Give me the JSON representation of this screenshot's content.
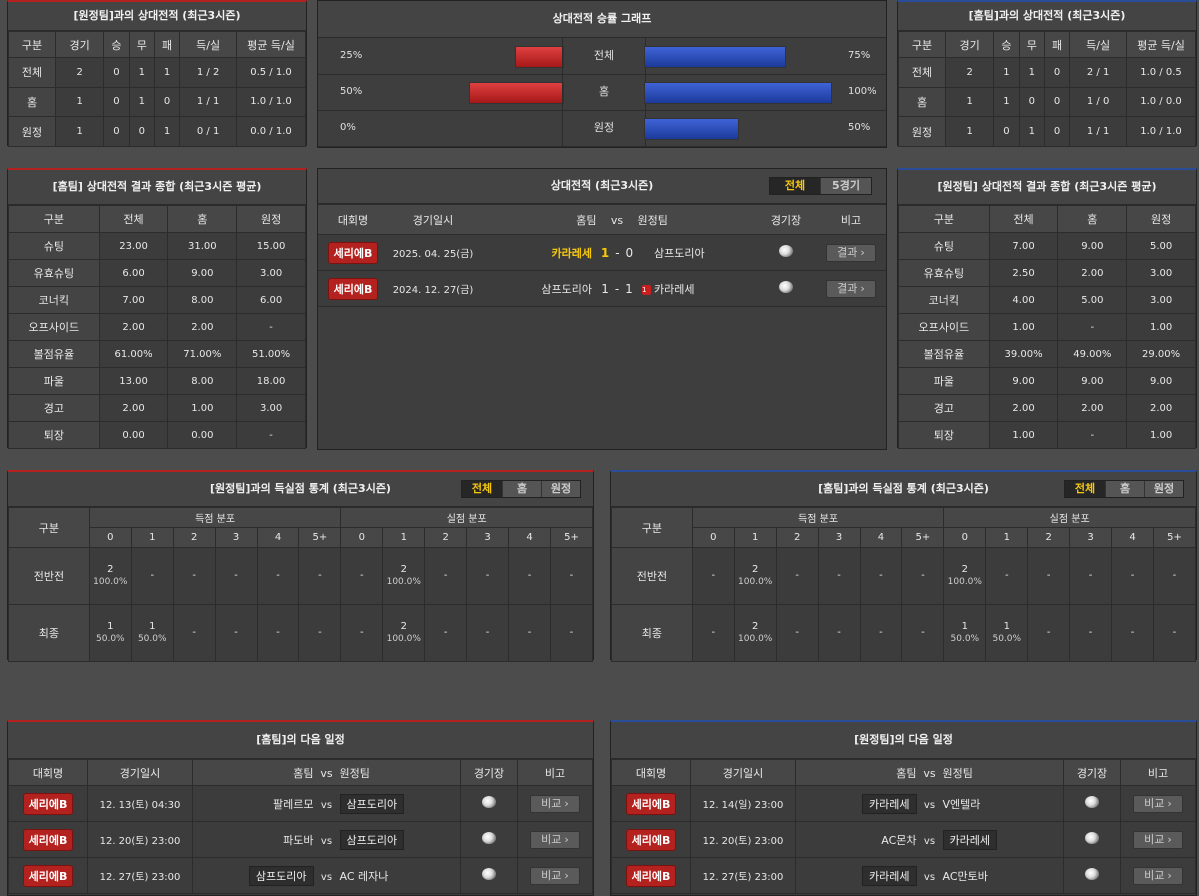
{
  "h2h_away_table": {
    "title": "[원정팀]과의 상대전적 (최근3시즌)",
    "headers": [
      "구분",
      "경기",
      "승",
      "무",
      "패",
      "득/실",
      "평균 득/실"
    ],
    "rows": [
      [
        "전체",
        "2",
        "0",
        "1",
        "1",
        "1 / 2",
        "0.5 / 1.0"
      ],
      [
        "홈",
        "1",
        "0",
        "1",
        "0",
        "1 / 1",
        "1.0 / 1.0"
      ],
      [
        "원정",
        "1",
        "0",
        "0",
        "1",
        "0 / 1",
        "0.0 / 1.0"
      ]
    ]
  },
  "h2h_home_table": {
    "title": "[홈팀]과의 상대전적 (최근3시즌)",
    "headers": [
      "구분",
      "경기",
      "승",
      "무",
      "패",
      "득/실",
      "평균 득/실"
    ],
    "rows": [
      [
        "전체",
        "2",
        "1",
        "1",
        "0",
        "2 / 1",
        "1.0 / 0.5"
      ],
      [
        "홈",
        "1",
        "1",
        "0",
        "0",
        "1 / 0",
        "1.0 / 0.0"
      ],
      [
        "원정",
        "1",
        "0",
        "1",
        "0",
        "1 / 1",
        "1.0 / 1.0"
      ]
    ]
  },
  "win_rate_graph": {
    "title": "상대전적 승률 그래프",
    "rows": [
      {
        "label": "전체",
        "left_text": "25%",
        "right_text": "75%",
        "left": 0.25,
        "right": 0.75
      },
      {
        "label": "홈",
        "left_text": "50%",
        "right_text": "100%",
        "left": 0.5,
        "right": 1.0
      },
      {
        "label": "원정",
        "left_text": "0%",
        "right_text": "50%",
        "left": 0.0,
        "right": 0.5
      }
    ]
  },
  "home_summary": {
    "title": "[홈팀] 상대전적 결과 종합 (최근3시즌 평균)",
    "headers": [
      "구분",
      "전체",
      "홈",
      "원정"
    ],
    "rows": [
      [
        "슈팅",
        "23.00",
        "31.00",
        "15.00"
      ],
      [
        "유효슈팅",
        "6.00",
        "9.00",
        "3.00"
      ],
      [
        "코너킥",
        "7.00",
        "8.00",
        "6.00"
      ],
      [
        "오프사이드",
        "2.00",
        "2.00",
        "-"
      ],
      [
        "볼점유율",
        "61.00%",
        "71.00%",
        "51.00%"
      ],
      [
        "파울",
        "13.00",
        "8.00",
        "18.00"
      ],
      [
        "경고",
        "2.00",
        "1.00",
        "3.00"
      ],
      [
        "퇴장",
        "0.00",
        "0.00",
        "-"
      ]
    ]
  },
  "away_summary": {
    "title": "[원정팀] 상대전적 결과 종합 (최근3시즌 평균)",
    "headers": [
      "구분",
      "전체",
      "홈",
      "원정"
    ],
    "rows": [
      [
        "슈팅",
        "7.00",
        "9.00",
        "5.00"
      ],
      [
        "유효슈팅",
        "2.50",
        "2.00",
        "3.00"
      ],
      [
        "코너킥",
        "4.00",
        "5.00",
        "3.00"
      ],
      [
        "오프사이드",
        "1.00",
        "-",
        "1.00"
      ],
      [
        "볼점유율",
        "39.00%",
        "49.00%",
        "29.00%"
      ],
      [
        "파울",
        "9.00",
        "9.00",
        "9.00"
      ],
      [
        "경고",
        "2.00",
        "2.00",
        "2.00"
      ],
      [
        "퇴장",
        "1.00",
        "-",
        "1.00"
      ]
    ]
  },
  "h2h_matches": {
    "title": "상대전적 (최근3시즌)",
    "tabs": [
      "전체",
      "5경기"
    ],
    "headers": {
      "league": "대회명",
      "date": "경기일시",
      "home": "홈팀",
      "vs": "vs",
      "away": "원정팀",
      "venue": "경기장",
      "note": "비고"
    },
    "rows": [
      {
        "league": "세리에B",
        "date": "2025. 04. 25(금)",
        "home": "카라레세",
        "home_score": "1",
        "dash": "-",
        "away_score": "0",
        "away": "삼프도리아",
        "red_card": "",
        "btn": "결과"
      },
      {
        "league": "세리에B",
        "date": "2024. 12. 27(금)",
        "home": "삼프도리아",
        "home_score": "1",
        "dash": "-",
        "away_score": "1",
        "away": "카라레세",
        "red_card": "1",
        "btn": "결과"
      }
    ]
  },
  "goals_away": {
    "title": "[원정팀]과의 득실점 통계 (최근3시즌)",
    "tabs": [
      "전체",
      "홈",
      "원정"
    ],
    "col_label": "구분",
    "group_for": "득점 분포",
    "group_against": "실점 분포",
    "buckets": [
      "0",
      "1",
      "2",
      "3",
      "4",
      "5+"
    ],
    "rows": [
      {
        "label": "전반전",
        "cells": [
          [
            "2",
            "100.0%"
          ],
          [
            "-",
            ""
          ],
          [
            "-",
            ""
          ],
          [
            "-",
            ""
          ],
          [
            "-",
            ""
          ],
          [
            "-",
            ""
          ],
          [
            "-",
            ""
          ],
          [
            "2",
            "100.0%"
          ],
          [
            "-",
            ""
          ],
          [
            "-",
            ""
          ],
          [
            "-",
            ""
          ],
          [
            "-",
            ""
          ]
        ]
      },
      {
        "label": "최종",
        "cells": [
          [
            "1",
            "50.0%"
          ],
          [
            "1",
            "50.0%"
          ],
          [
            "-",
            ""
          ],
          [
            "-",
            ""
          ],
          [
            "-",
            ""
          ],
          [
            "-",
            ""
          ],
          [
            "-",
            ""
          ],
          [
            "2",
            "100.0%"
          ],
          [
            "-",
            ""
          ],
          [
            "-",
            ""
          ],
          [
            "-",
            ""
          ],
          [
            "-",
            ""
          ]
        ]
      }
    ]
  },
  "goals_home": {
    "title": "[홈팀]과의 득실점 통계 (최근3시즌)",
    "tabs": [
      "전체",
      "홈",
      "원정"
    ],
    "col_label": "구분",
    "group_for": "득점 분포",
    "group_against": "실점 분포",
    "buckets": [
      "0",
      "1",
      "2",
      "3",
      "4",
      "5+"
    ],
    "rows": [
      {
        "label": "전반전",
        "cells": [
          [
            "-",
            ""
          ],
          [
            "2",
            "100.0%"
          ],
          [
            "-",
            ""
          ],
          [
            "-",
            ""
          ],
          [
            "-",
            ""
          ],
          [
            "-",
            ""
          ],
          [
            "2",
            "100.0%"
          ],
          [
            "-",
            ""
          ],
          [
            "-",
            ""
          ],
          [
            "-",
            ""
          ],
          [
            "-",
            ""
          ],
          [
            "-",
            ""
          ]
        ]
      },
      {
        "label": "최종",
        "cells": [
          [
            "-",
            ""
          ],
          [
            "2",
            "100.0%"
          ],
          [
            "-",
            ""
          ],
          [
            "-",
            ""
          ],
          [
            "-",
            ""
          ],
          [
            "-",
            ""
          ],
          [
            "1",
            "50.0%"
          ],
          [
            "1",
            "50.0%"
          ],
          [
            "-",
            ""
          ],
          [
            "-",
            ""
          ],
          [
            "-",
            ""
          ],
          [
            "-",
            ""
          ]
        ]
      }
    ]
  },
  "home_next": {
    "title": "[홈팀]의 다음 일정",
    "headers": {
      "league": "대회명",
      "date": "경기일시",
      "home": "홈팀",
      "vs": "vs",
      "away": "원정팀",
      "venue": "경기장",
      "note": "비고"
    },
    "rows": [
      {
        "league": "세리에B",
        "date": "12. 13(토) 04:30",
        "home": "팔레르모",
        "away": "삼프도리아",
        "hl": "away",
        "btn": "비교"
      },
      {
        "league": "세리에B",
        "date": "12. 20(토) 23:00",
        "home": "파도바",
        "away": "삼프도리아",
        "hl": "away",
        "btn": "비교"
      },
      {
        "league": "세리에B",
        "date": "12. 27(토) 23:00",
        "home": "삼프도리아",
        "away": "AC 레자나",
        "hl": "home",
        "btn": "비교"
      }
    ]
  },
  "away_next": {
    "title": "[원정팀]의 다음 일정",
    "headers": {
      "league": "대회명",
      "date": "경기일시",
      "home": "홈팀",
      "vs": "vs",
      "away": "원정팀",
      "venue": "경기장",
      "note": "비고"
    },
    "rows": [
      {
        "league": "세리에B",
        "date": "12. 14(일) 23:00",
        "home": "카라레세",
        "away": "V엔텔라",
        "hl": "home",
        "btn": "비교"
      },
      {
        "league": "세리에B",
        "date": "12. 20(토) 23:00",
        "home": "AC몬차",
        "away": "카라레세",
        "hl": "away",
        "btn": "비교"
      },
      {
        "league": "세리에B",
        "date": "12. 27(토) 23:00",
        "home": "카라레세",
        "away": "AC만토바",
        "hl": "home",
        "btn": "비교"
      }
    ]
  }
}
